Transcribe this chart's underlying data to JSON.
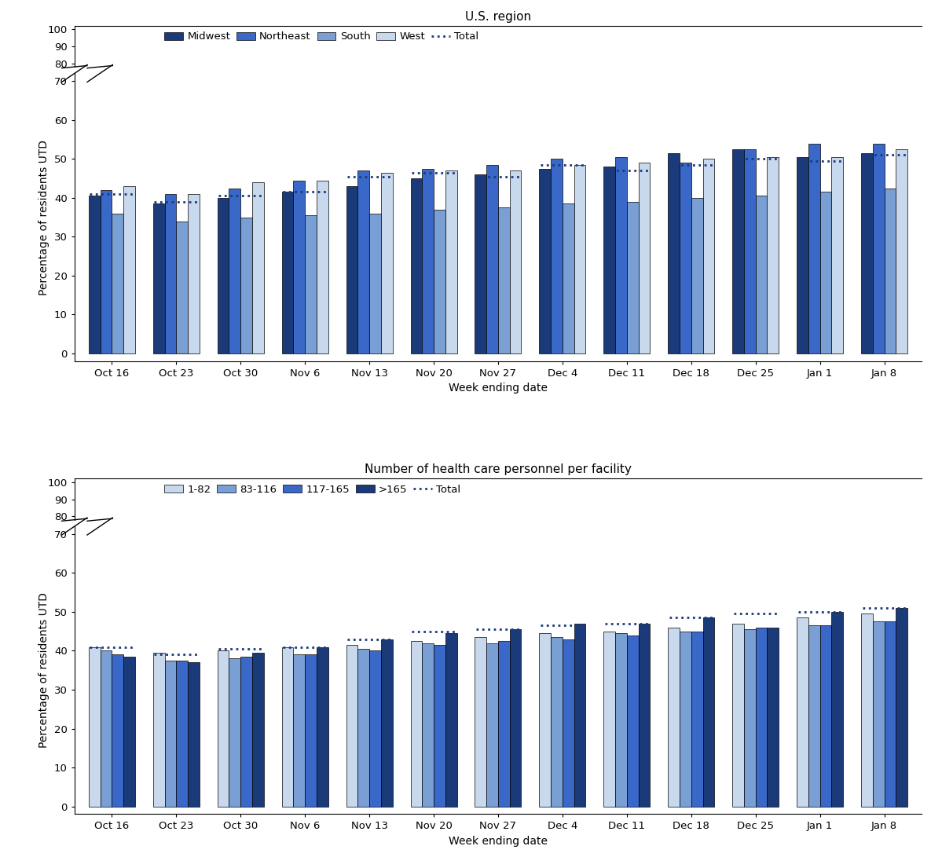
{
  "weeks": [
    "Oct 16",
    "Oct 23",
    "Oct 30",
    "Nov 6",
    "Nov 13",
    "Nov 20",
    "Nov 27",
    "Dec 4",
    "Dec 11",
    "Dec 18",
    "Dec 25",
    "Jan 1",
    "Jan 8"
  ],
  "region_data": {
    "Midwest": [
      40.5,
      38.5,
      40.0,
      41.5,
      43.0,
      45.0,
      46.0,
      47.5,
      48.0,
      51.5,
      52.5,
      50.5,
      51.5
    ],
    "Northeast": [
      42.0,
      41.0,
      42.5,
      44.5,
      47.0,
      47.5,
      48.5,
      50.0,
      50.5,
      49.0,
      52.5,
      54.0,
      54.0
    ],
    "South": [
      36.0,
      34.0,
      35.0,
      35.5,
      36.0,
      37.0,
      37.5,
      38.5,
      39.0,
      40.0,
      40.5,
      41.5,
      42.5
    ],
    "West": [
      43.0,
      41.0,
      44.0,
      44.5,
      46.5,
      47.0,
      47.0,
      48.5,
      49.0,
      50.0,
      50.5,
      50.5,
      52.5
    ]
  },
  "region_total": [
    41.0,
    39.0,
    40.5,
    41.5,
    45.5,
    46.5,
    45.5,
    48.5,
    47.0,
    48.5,
    50.0,
    49.5,
    51.0
  ],
  "size_data": {
    "1-82": [
      41.0,
      39.5,
      40.0,
      41.0,
      41.5,
      42.5,
      43.5,
      44.5,
      45.0,
      46.0,
      47.0,
      48.5,
      49.5
    ],
    "83-116": [
      40.0,
      37.5,
      38.0,
      39.0,
      40.5,
      42.0,
      42.0,
      43.5,
      44.5,
      45.0,
      45.5,
      46.5,
      47.5
    ],
    "117-165": [
      39.0,
      37.5,
      38.5,
      39.0,
      40.0,
      41.5,
      42.5,
      43.0,
      44.0,
      45.0,
      46.0,
      46.5,
      47.5
    ],
    ">165": [
      38.5,
      37.0,
      39.5,
      41.0,
      43.0,
      44.5,
      45.5,
      47.0,
      47.0,
      48.5,
      46.0,
      50.0,
      51.0
    ]
  },
  "size_total": [
    41.0,
    39.0,
    40.5,
    41.0,
    43.0,
    45.0,
    45.5,
    46.5,
    47.0,
    48.5,
    49.5,
    50.0,
    51.0
  ],
  "region_colors": {
    "Midwest": "#1a3a7a",
    "Northeast": "#3a68c8",
    "South": "#7a9fd4",
    "West": "#c8d8ed"
  },
  "size_colors": {
    "1-82": "#c8d8ed",
    "83-116": "#7a9fd4",
    "117-165": "#3a68c8",
    ">165": "#1a3a7a"
  },
  "total_color": "#1a3a7a",
  "top_title": "U.S. region",
  "bottom_title": "Number of health care personnel per facility",
  "ylabel": "Percentage of residents UTD",
  "xlabel": "Week ending date",
  "region_legend_order": [
    "Midwest",
    "Northeast",
    "South",
    "West"
  ],
  "size_legend_order": [
    "1-82",
    "83-116",
    "117-165",
    ">165"
  ]
}
